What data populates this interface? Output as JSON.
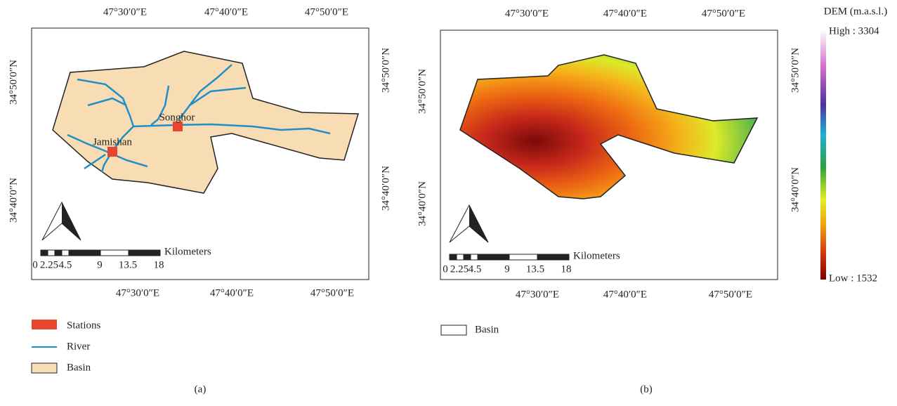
{
  "panels": [
    {
      "caption": "(a)",
      "x_labels_top": [
        "47°30′0″E",
        "47°40′0″E",
        "47°50′0″E"
      ],
      "x_labels_bottom": [
        "47°30′0″E",
        "47°40′0″E",
        "47°50′0″E"
      ],
      "y_labels_left": [
        "34°50′0″N",
        "34°40′0″N"
      ],
      "y_labels_right": [
        "34°50′0″N",
        "34°40′0″N"
      ],
      "stations": [
        "Songhor",
        "Jamishan"
      ],
      "scale_bar": {
        "labels": [
          "0",
          "2.25",
          "4.5",
          "9",
          "13.5",
          "18"
        ],
        "unit": "Kilometers"
      },
      "legend": [
        "Stations",
        "River",
        "Basin"
      ]
    },
    {
      "caption": "(b)",
      "x_labels_top": [
        "47°30′0″E",
        "47°40′0″E",
        "47°50′0″E"
      ],
      "x_labels_bottom": [
        "47°30′0″E",
        "47°40′0″E",
        "47°50′0″E"
      ],
      "y_labels_left": [
        "34°50′0″N",
        "34°40′0″N"
      ],
      "y_labels_right": [
        "34°50′0″N",
        "34°40′0″N"
      ],
      "scale_bar": {
        "labels": [
          "0",
          "2.25",
          "4.5",
          "9",
          "13.5",
          "18"
        ],
        "unit": "Kilometers"
      },
      "legend": [
        "Basin"
      ]
    }
  ],
  "colorbar": {
    "title": "DEM (m.a.s.l.)",
    "high": "High : 3304",
    "low": "Low : 1532"
  }
}
